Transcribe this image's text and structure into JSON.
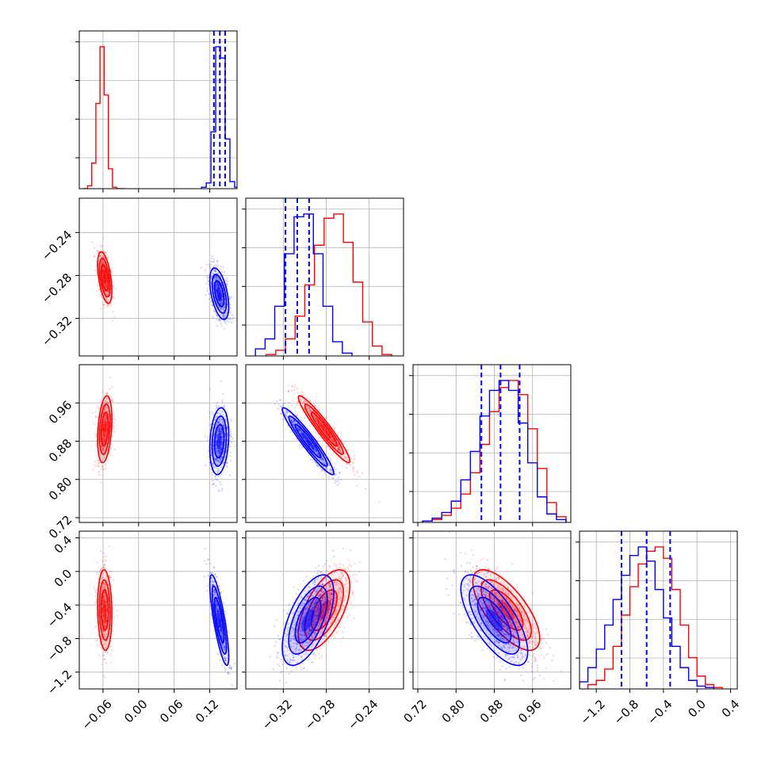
{
  "chart_data": {
    "type": "corner",
    "description_free": true,
    "parameters": [
      {
        "id": "p1",
        "range": [
          -0.1,
          0.166
        ],
        "ticks": [
          -0.06,
          0.0,
          0.06,
          0.12
        ],
        "tick_labels": [
          "−0.06",
          "0.00",
          "0.06",
          "0.12"
        ]
      },
      {
        "id": "p2",
        "range": [
          -0.355,
          -0.208
        ],
        "ticks": [
          -0.32,
          -0.28,
          -0.24
        ],
        "tick_labels": [
          "−0.32",
          "−0.28",
          "−0.24"
        ]
      },
      {
        "id": "p3",
        "range": [
          0.71,
          1.04
        ],
        "ticks": [
          0.72,
          0.8,
          0.88,
          0.96
        ],
        "tick_labels": [
          "0.72",
          "0.80",
          "0.88",
          "0.96"
        ]
      },
      {
        "id": "p4",
        "range": [
          -1.4,
          0.48
        ],
        "ticks": [
          -1.2,
          -0.8,
          -0.4,
          0.0,
          0.4
        ],
        "tick_labels": [
          "−1.2",
          "−0.8",
          "−0.4",
          "0.0",
          "0.4"
        ]
      }
    ],
    "series": [
      {
        "color": "#ff0000",
        "mean": [
          -0.057,
          -0.282,
          0.905,
          -0.46
        ],
        "std": [
          0.006,
          0.012,
          0.035,
          0.24
        ],
        "corr": [
          [
            1,
            -0.5,
            0.3,
            -0.1
          ],
          [
            -0.5,
            1,
            -0.95,
            0.6
          ],
          [
            0.3,
            -0.95,
            1,
            -0.7
          ],
          [
            -0.1,
            0.6,
            -0.7,
            1
          ]
        ],
        "hist": [
          {
            "edges": [
              -0.093,
              -0.086,
              -0.079,
              -0.072,
              -0.065,
              -0.058,
              -0.051,
              -0.044,
              -0.037,
              -0.03,
              -0.023
            ],
            "values": [
              0,
              0.02,
              0.18,
              0.6,
              1.0,
              0.66,
              0.14,
              0.01,
              0,
              0
            ]
          },
          {
            "edges": [
              -0.336,
              -0.327,
              -0.318,
              -0.309,
              -0.3,
              -0.291,
              -0.282,
              -0.273,
              -0.264,
              -0.255,
              -0.246,
              -0.237,
              -0.228,
              -0.219
            ],
            "values": [
              0.01,
              0.04,
              0.12,
              0.28,
              0.5,
              0.78,
              0.97,
              1.0,
              0.8,
              0.52,
              0.24,
              0.07,
              0.01
            ]
          },
          {
            "edges": [
              0.73,
              0.75,
              0.77,
              0.79,
              0.81,
              0.83,
              0.85,
              0.87,
              0.89,
              0.91,
              0.93,
              0.95,
              0.97,
              0.99,
              1.01,
              1.03
            ],
            "values": [
              0.01,
              0.02,
              0.05,
              0.1,
              0.2,
              0.35,
              0.55,
              0.78,
              0.95,
              1.0,
              0.9,
              0.66,
              0.38,
              0.14,
              0.04
            ]
          },
          {
            "edges": [
              -1.3,
              -1.2,
              -1.1,
              -1.0,
              -0.9,
              -0.8,
              -0.7,
              -0.6,
              -0.5,
              -0.4,
              -0.3,
              -0.2,
              -0.1,
              0.0,
              0.1,
              0.2,
              0.3
            ],
            "values": [
              0.03,
              0.06,
              0.14,
              0.3,
              0.52,
              0.72,
              0.88,
              0.97,
              1.0,
              0.92,
              0.7,
              0.45,
              0.22,
              0.09,
              0.03,
              0.01
            ]
          }
        ]
      },
      {
        "color": "#0000ff",
        "mean": [
          0.136,
          -0.297,
          0.88,
          -0.58
        ],
        "std": [
          0.008,
          0.012,
          0.035,
          0.27
        ],
        "corr": [
          [
            1,
            -0.5,
            0.2,
            -0.8
          ],
          [
            -0.5,
            1,
            -0.95,
            0.6
          ],
          [
            0.2,
            -0.95,
            1,
            -0.7
          ],
          [
            -0.8,
            0.6,
            -0.7,
            1
          ]
        ],
        "quantiles": [
          [
            0.127,
            0.137,
            0.146
          ],
          [
            -0.318,
            -0.307,
            -0.296
          ],
          [
            0.853,
            0.893,
            0.933
          ],
          [
            -0.9,
            -0.6,
            -0.32
          ]
        ],
        "hist": [
          {
            "edges": [
              0.106,
              0.114,
              0.122,
              0.13,
              0.138,
              0.146,
              0.154,
              0.162,
              0.17
            ],
            "values": [
              0.01,
              0.04,
              0.4,
              1.0,
              0.92,
              0.35,
              0.05,
              0.01
            ]
          },
          {
            "edges": [
              -0.346,
              -0.337,
              -0.328,
              -0.319,
              -0.31,
              -0.301,
              -0.292,
              -0.283,
              -0.274,
              -0.265,
              -0.256
            ],
            "values": [
              0.05,
              0.12,
              0.35,
              0.72,
              0.98,
              1.0,
              0.72,
              0.35,
              0.1,
              0.02
            ]
          },
          {
            "edges": [
              0.73,
              0.75,
              0.77,
              0.79,
              0.81,
              0.83,
              0.85,
              0.87,
              0.89,
              0.91,
              0.93,
              0.95,
              0.97,
              0.99,
              1.01,
              1.03
            ],
            "values": [
              0.01,
              0.03,
              0.07,
              0.15,
              0.3,
              0.5,
              0.75,
              0.93,
              1.0,
              0.93,
              0.7,
              0.42,
              0.18,
              0.06,
              0.02
            ]
          },
          {
            "edges": [
              -1.4,
              -1.3,
              -1.2,
              -1.1,
              -1.0,
              -0.9,
              -0.8,
              -0.7,
              -0.6,
              -0.5,
              -0.4,
              -0.3,
              -0.2,
              -0.1,
              0.0,
              0.1,
              0.2
            ],
            "values": [
              0.05,
              0.15,
              0.28,
              0.45,
              0.63,
              0.8,
              0.94,
              1.0,
              0.9,
              0.7,
              0.5,
              0.3,
              0.15,
              0.06,
              0.02,
              0.01
            ]
          }
        ]
      }
    ],
    "grid": true,
    "title": "",
    "legend": null
  }
}
